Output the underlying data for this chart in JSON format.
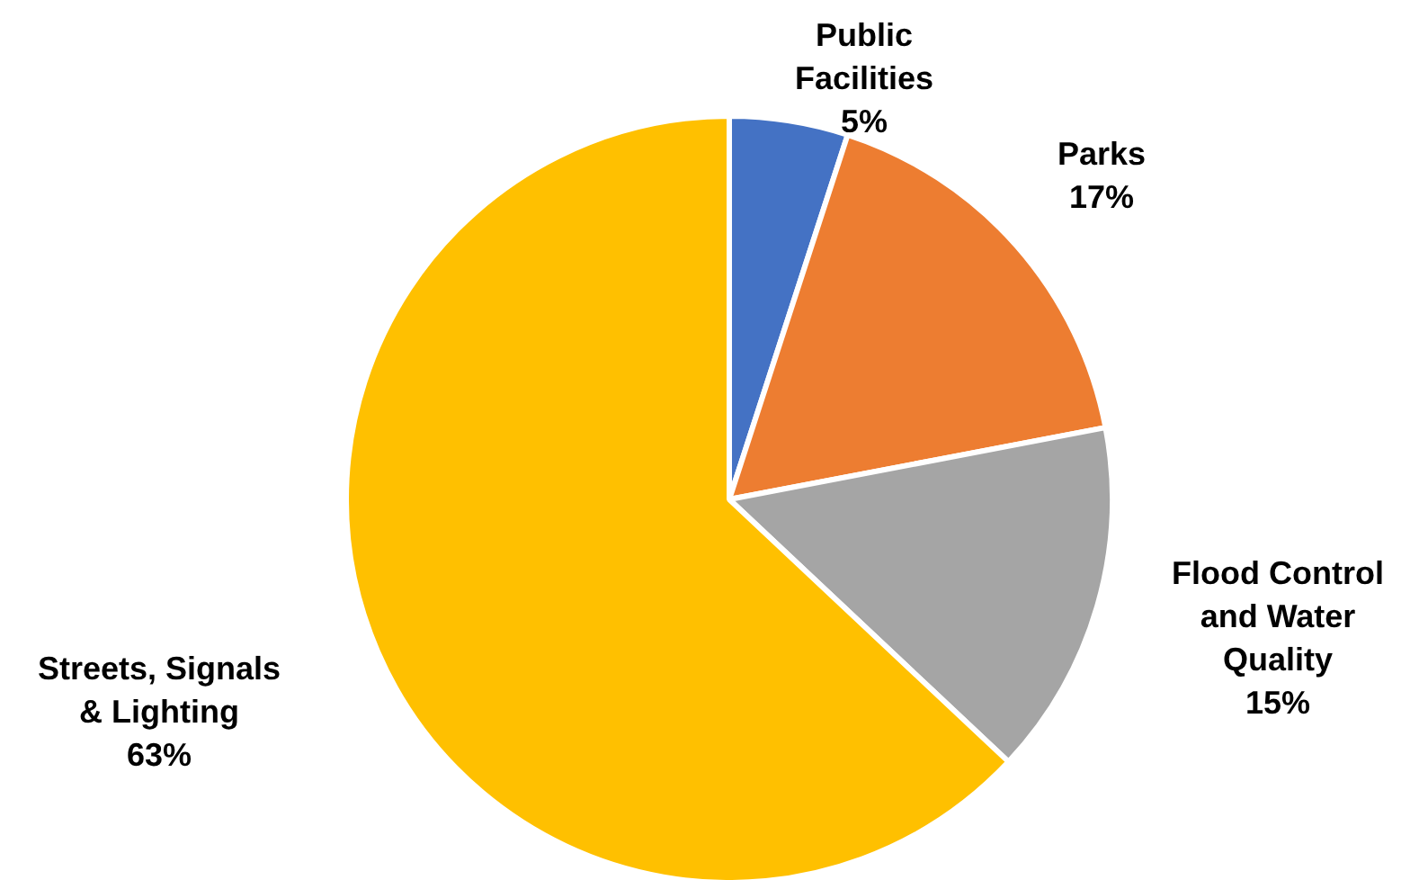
{
  "chart_data": {
    "type": "pie",
    "categories": [
      "Public Facilities",
      "Parks",
      "Flood Control and Water Quality",
      "Streets, Signals & Lighting"
    ],
    "values": [
      5,
      17,
      15,
      63
    ],
    "colors": [
      "#4472c4",
      "#ed7d31",
      "#a5a5a5",
      "#ffc000"
    ],
    "value_labels": [
      "5%",
      "17%",
      "15%",
      "63%"
    ]
  }
}
